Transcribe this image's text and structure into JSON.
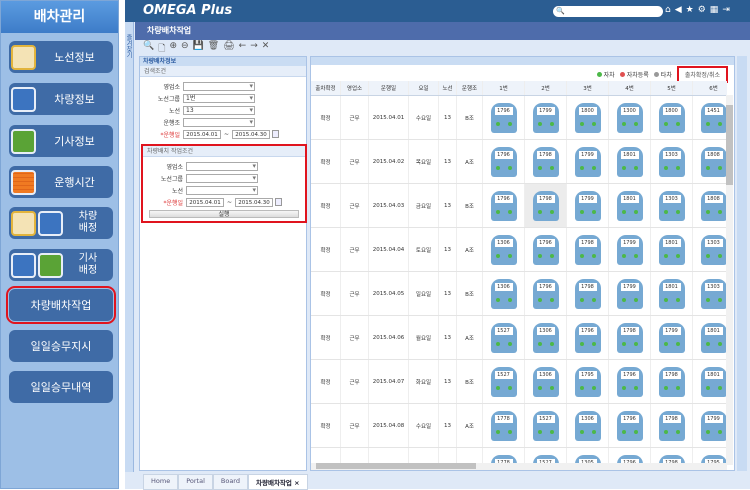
{
  "sidebar": {
    "title": "배차관리",
    "items": [
      {
        "label": "노선정보",
        "icons": [
          "map-icon"
        ]
      },
      {
        "label": "차량정보",
        "icons": [
          "bus-icon"
        ]
      },
      {
        "label": "기사정보",
        "icons": [
          "driver-icon"
        ]
      },
      {
        "label": "운행시간",
        "icons": [
          "timetable-icon"
        ]
      },
      {
        "label": "차량\n배정",
        "icons": [
          "map-icon",
          "bus-icon"
        ]
      },
      {
        "label": "기사\n배정",
        "icons": [
          "bus-icon",
          "driver-icon"
        ]
      },
      {
        "label": "차량배차작업",
        "icons": [],
        "active": true
      },
      {
        "label": "일일승무지시",
        "icons": []
      },
      {
        "label": "일일승무내역",
        "icons": []
      }
    ]
  },
  "app": {
    "logo": "OMEGA Plus",
    "title": "차량배차작업",
    "favorites": "즐겨찾기",
    "search_icon": "🔍"
  },
  "toolbar": [
    "🔍",
    "🗋",
    "⊕",
    "⊖",
    "💾",
    "🗑",
    "🖨",
    "←",
    "→",
    "✕"
  ],
  "left_panel": {
    "title": "차량배차정보",
    "search": {
      "title": "검색조건",
      "branch_label": "영업소",
      "branch": "",
      "group_label": "노선그룹",
      "group": "1번",
      "route_label": "노선",
      "route": "13",
      "shift_label": "운행조",
      "shift": "",
      "date_label": "*운행일",
      "date_from": "2015.04.01",
      "date_to": "2015.04.30",
      "sep": "~"
    },
    "work": {
      "title": "차량배치 작업조건",
      "branch_label": "영업소",
      "group_label": "노선그룹",
      "route_label": "노선",
      "date_label": "*운행일",
      "date_from": "2015.04.01",
      "date_to": "2015.04.30",
      "sep": "~",
      "run": "실행"
    }
  },
  "legend": [
    {
      "label": "자차",
      "color": "#4cb848"
    },
    {
      "label": "자차등록",
      "color": "#e05050"
    },
    {
      "label": "타차",
      "color": "#999999"
    }
  ],
  "confirm_button": "출차확정/취소",
  "columns": [
    "출차확정",
    "영업소",
    "운행일",
    "요일",
    "노선",
    "운행조",
    "1번",
    "2번",
    "3번",
    "4번",
    "5번",
    "6번"
  ],
  "rows": [
    {
      "status": "확정",
      "branch": "근무",
      "date": "2015.04.01",
      "day": "수요일",
      "route": "13",
      "shift": "B조",
      "buses": [
        "1796",
        "1799",
        "1800",
        "1300",
        "1800",
        "1451"
      ]
    },
    {
      "status": "확정",
      "branch": "근무",
      "date": "2015.04.02",
      "day": "목요일",
      "route": "13",
      "shift": "A조",
      "buses": [
        "1796",
        "1798",
        "1799",
        "1801",
        "1303",
        "1808"
      ]
    },
    {
      "status": "확정",
      "branch": "근무",
      "date": "2015.04.03",
      "day": "금요일",
      "route": "13",
      "shift": "B조",
      "buses": [
        "1796",
        "1798",
        "1799",
        "1801",
        "1303",
        "1808"
      ]
    },
    {
      "status": "확정",
      "branch": "근무",
      "date": "2015.04.04",
      "day": "토요일",
      "route": "13",
      "shift": "A조",
      "buses": [
        "1306",
        "1796",
        "1798",
        "1799",
        "1801",
        "1303"
      ]
    },
    {
      "status": "확정",
      "branch": "근무",
      "date": "2015.04.05",
      "day": "일요일",
      "route": "13",
      "shift": "B조",
      "buses": [
        "1306",
        "1796",
        "1798",
        "1799",
        "1801",
        "1303"
      ]
    },
    {
      "status": "확정",
      "branch": "근무",
      "date": "2015.04.06",
      "day": "월요일",
      "route": "13",
      "shift": "A조",
      "buses": [
        "1527",
        "1306",
        "1796",
        "1798",
        "1799",
        "1801"
      ]
    },
    {
      "status": "확정",
      "branch": "근무",
      "date": "2015.04.07",
      "day": "화요일",
      "route": "13",
      "shift": "B조",
      "buses": [
        "1527",
        "1306",
        "1795",
        "1796",
        "1798",
        "1801"
      ]
    },
    {
      "status": "확정",
      "branch": "근무",
      "date": "2015.04.08",
      "day": "수요일",
      "route": "13",
      "shift": "A조",
      "buses": [
        "1778",
        "1527",
        "1306",
        "1796",
        "1798",
        "1799"
      ]
    },
    {
      "status": "",
      "branch": "",
      "date": "",
      "day": "",
      "route": "",
      "shift": "",
      "buses": [
        "1778",
        "1527",
        "1305",
        "1796",
        "1798",
        "1795"
      ]
    }
  ],
  "tabs": [
    {
      "label": "Home"
    },
    {
      "label": "Portal"
    },
    {
      "label": "Board"
    },
    {
      "label": "차량배차작업 ×",
      "active": true
    }
  ]
}
